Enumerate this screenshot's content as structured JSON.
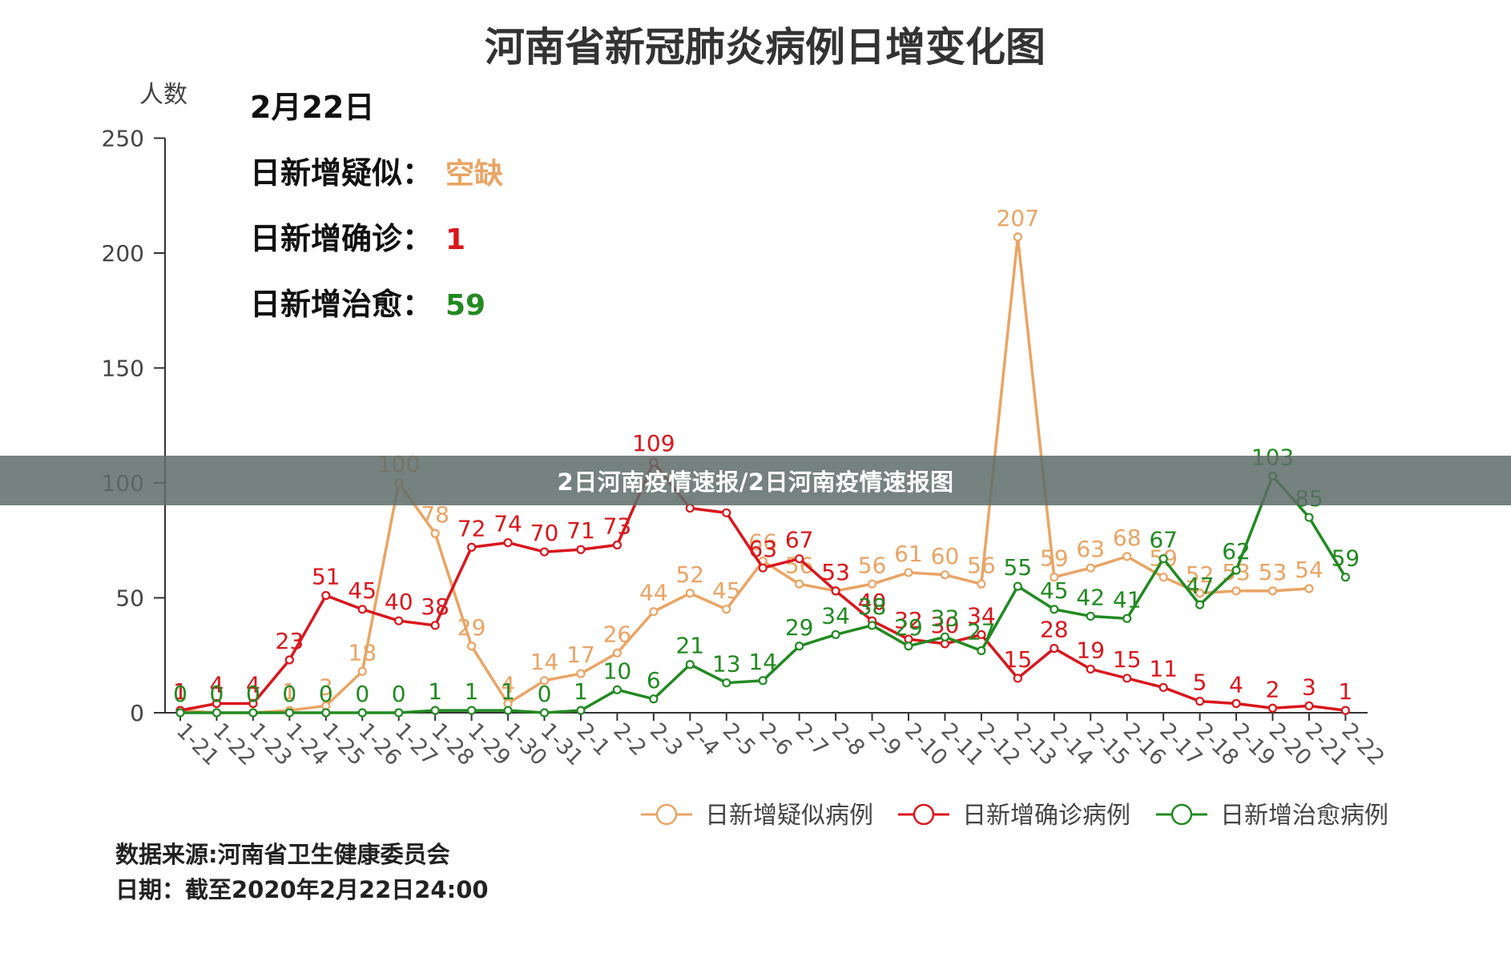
{
  "overlay": {
    "caption": "2日河南疫情速报/2日河南疫情速报图"
  },
  "footer": {
    "source": "数据来源:河南省卫生健康委员会",
    "date": "日期：截至2020年2月22日24:00"
  },
  "colors": {
    "suspected": "#eaa464",
    "confirmed": "#d9161c",
    "cured": "#218a21",
    "axis": "#333333"
  },
  "chart_data": {
    "type": "line",
    "title": "河南省新冠肺炎病例日增变化图",
    "ylabel": "人数",
    "ylim": [
      0,
      250
    ],
    "yticks": [
      0,
      50,
      100,
      150,
      200,
      250
    ],
    "legend_position": "bottom-right",
    "grid": false,
    "categories": [
      "1-21",
      "1-22",
      "1-23",
      "1-24",
      "1-25",
      "1-26",
      "1-27",
      "1-28",
      "1-29",
      "1-30",
      "1-31",
      "2-1",
      "2-2",
      "2-3",
      "2-4",
      "2-5",
      "2-6",
      "2-7",
      "2-8",
      "2-9",
      "2-10",
      "2-11",
      "2-12",
      "2-13",
      "2-14",
      "2-15",
      "2-16",
      "2-17",
      "2-18",
      "2-19",
      "2-20",
      "2-21",
      "2-22"
    ],
    "series": [
      {
        "name": "日新增疑似病例",
        "color": "#eaa464",
        "values": [
          1,
          0,
          0,
          1,
          3,
          18,
          100,
          78,
          29,
          4,
          14,
          17,
          26,
          44,
          52,
          45,
          66,
          56,
          53,
          56,
          61,
          60,
          56,
          207,
          59,
          63,
          68,
          59,
          52,
          53,
          53,
          54,
          null
        ]
      },
      {
        "name": "日新增确诊病例",
        "color": "#d9161c",
        "values": [
          1,
          4,
          4,
          23,
          51,
          45,
          40,
          38,
          72,
          74,
          70,
          71,
          73,
          109,
          89,
          87,
          63,
          67,
          53,
          40,
          32,
          30,
          34,
          15,
          28,
          19,
          15,
          11,
          5,
          4,
          2,
          3,
          1
        ]
      },
      {
        "name": "日新增治愈病例",
        "color": "#218a21",
        "values": [
          0,
          0,
          0,
          0,
          0,
          0,
          0,
          1,
          1,
          1,
          0,
          1,
          10,
          6,
          21,
          13,
          14,
          29,
          34,
          38,
          29,
          33,
          27,
          55,
          45,
          42,
          41,
          67,
          47,
          62,
          103,
          85,
          59
        ]
      }
    ],
    "hidden_labels": {
      "日新增确诊病例": [
        14,
        15
      ]
    },
    "summary": {
      "date": "2月22日",
      "items": [
        {
          "label": "日新增疑似：",
          "value": "空缺",
          "color": "#eaa464"
        },
        {
          "label": "日新增确诊：",
          "value": "1",
          "color": "#d9161c"
        },
        {
          "label": "日新增治愈：",
          "value": "59",
          "color": "#218a21"
        }
      ]
    }
  }
}
